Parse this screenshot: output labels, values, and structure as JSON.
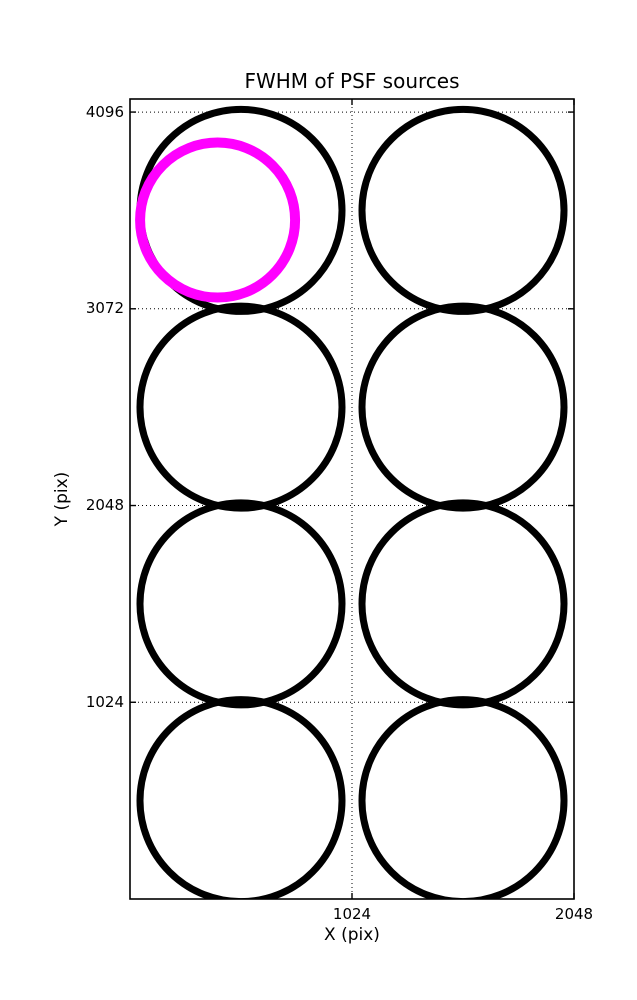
{
  "page": {
    "background": "#ffffff",
    "foreground": "#000000"
  },
  "chart_data": {
    "type": "scatter",
    "title": "FWHM of PSF sources",
    "xlabel": "X (pix)",
    "ylabel": "Y (pix)",
    "xlim": [
      0,
      2048
    ],
    "ylim": [
      0,
      4164
    ],
    "xticks": [
      {
        "value": 1024,
        "label": "1024"
      },
      {
        "value": 2048,
        "label": "2048"
      }
    ],
    "yticks": [
      {
        "value": 1024,
        "label": "1024"
      },
      {
        "value": 2048,
        "label": "2048"
      },
      {
        "value": 3072,
        "label": "3072"
      },
      {
        "value": 4096,
        "label": "4096"
      }
    ],
    "grid": {
      "style": "dotted",
      "color": "#000000",
      "vertical_lines_at_x": [
        1024
      ],
      "horizontal_lines_at_y": [
        1024,
        2048,
        3072,
        4096
      ]
    },
    "legend": null,
    "axes_color": "#000000",
    "series": [
      {
        "name": "psf-fwhm-markers",
        "marker": "open-circle",
        "color": "#000000",
        "marker_radius_px": 101,
        "marker_stroke_px": 7,
        "points": [
          {
            "x": 512,
            "y": 3584
          },
          {
            "x": 1536,
            "y": 3584
          },
          {
            "x": 512,
            "y": 2560
          },
          {
            "x": 1536,
            "y": 2560
          },
          {
            "x": 512,
            "y": 1536
          },
          {
            "x": 1536,
            "y": 1536
          },
          {
            "x": 512,
            "y": 512
          },
          {
            "x": 1536,
            "y": 512
          }
        ]
      },
      {
        "name": "highlighted-fwhm-marker",
        "marker": "open-circle",
        "color": "#ff00ff",
        "marker_radius_px": 77.5,
        "marker_stroke_px": 10,
        "points": [
          {
            "x": 404,
            "y": 3534
          }
        ]
      }
    ]
  }
}
